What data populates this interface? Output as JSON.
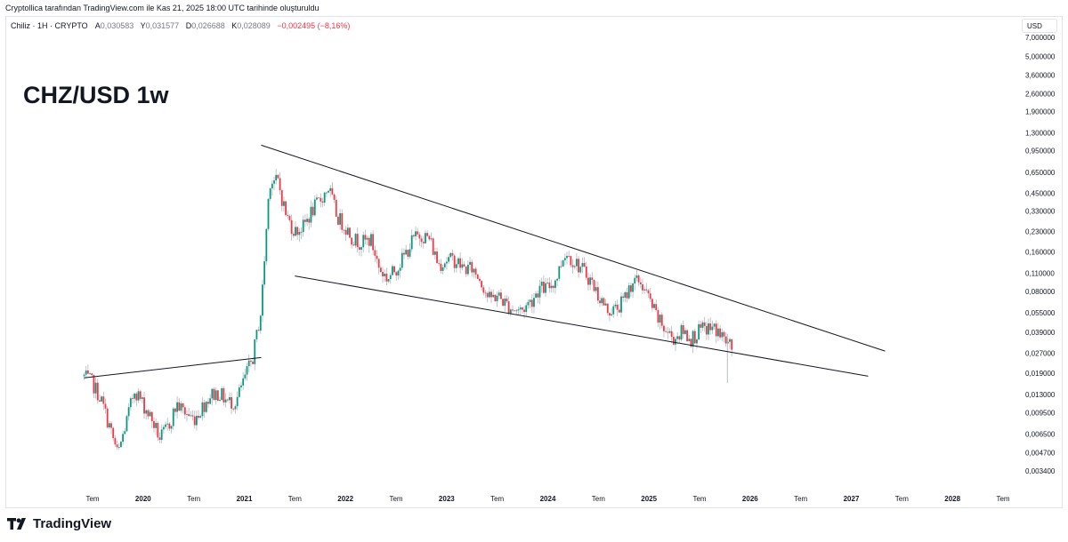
{
  "caption": "Cryptollica tarafından TradingView.com ile Kas 21, 2025 18:00 UTC tarihinde oluşturuldu",
  "legend": {
    "symbol": "Chiliz · 1H · CRYPTO",
    "open_label": "A",
    "open": "0,030583",
    "high_label": "Y",
    "high": "0,031577",
    "low_label": "D",
    "low": "0,026688",
    "close_label": "K",
    "close": "0,028089",
    "change": "−0,002495 (−8,16%)"
  },
  "currency": "USD",
  "brand": "TradingView",
  "colors": {
    "up": "#089981",
    "down": "#f23645",
    "wick": "#b2b5be",
    "trendline": "#131722"
  },
  "chart_data": {
    "type": "candlestick",
    "title": "CHZ/USD 1w",
    "y_scale": "log",
    "y_ticks": [
      "7,000000",
      "5,000000",
      "3,600000",
      "2,600000",
      "1,900000",
      "1,300000",
      "0,950000",
      "0,650000",
      "0,450000",
      "0,330000",
      "0,230000",
      "0,160000",
      "0,110000",
      "0,080000",
      "0,055000",
      "0,039000",
      "0,027000",
      "0,019000",
      "0,013000",
      "0,009500",
      "0,006500",
      "0,004700",
      "0,003400"
    ],
    "x_ticks": [
      "Tem",
      "2020",
      "Tem",
      "2021",
      "Tem",
      "2022",
      "Tem",
      "2023",
      "Tem",
      "2024",
      "Tem",
      "2025",
      "Tem",
      "2026",
      "Tem",
      "2027",
      "Tem",
      "2028",
      "Tem"
    ],
    "x_tick_dates": [
      "2019-07",
      "2020-01",
      "2020-07",
      "2021-01",
      "2021-07",
      "2022-01",
      "2022-07",
      "2023-01",
      "2023-07",
      "2024-01",
      "2024-07",
      "2025-01",
      "2025-07",
      "2026-01",
      "2026-07",
      "2027-01",
      "2027-07",
      "2028-01",
      "2028-07"
    ],
    "series_shape": [
      [
        "2019-06",
        0.018
      ],
      [
        "2019-07",
        0.016
      ],
      [
        "2019-08",
        0.012
      ],
      [
        "2019-09",
        0.0075
      ],
      [
        "2019-10",
        0.0045
      ],
      [
        "2019-11",
        0.008
      ],
      [
        "2019-12",
        0.0145
      ],
      [
        "2020-01",
        0.011
      ],
      [
        "2020-02",
        0.0085
      ],
      [
        "2020-03",
        0.006
      ],
      [
        "2020-04",
        0.0075
      ],
      [
        "2020-05",
        0.011
      ],
      [
        "2020-06",
        0.0095
      ],
      [
        "2020-07",
        0.0085
      ],
      [
        "2020-08",
        0.0105
      ],
      [
        "2020-09",
        0.013
      ],
      [
        "2020-10",
        0.0135
      ],
      [
        "2020-11",
        0.0115
      ],
      [
        "2020-12",
        0.0115
      ],
      [
        "2021-01",
        0.017
      ],
      [
        "2021-02",
        0.025
      ],
      [
        "2021-03",
        0.058
      ],
      [
        "2021-04",
        0.57
      ],
      [
        "2021-05",
        0.55
      ],
      [
        "2021-06",
        0.3
      ],
      [
        "2021-07",
        0.23
      ],
      [
        "2021-08",
        0.25
      ],
      [
        "2021-09",
        0.33
      ],
      [
        "2021-10",
        0.4
      ],
      [
        "2021-11",
        0.5
      ],
      [
        "2021-12",
        0.3
      ],
      [
        "2022-01",
        0.25
      ],
      [
        "2022-02",
        0.2
      ],
      [
        "2022-03",
        0.19
      ],
      [
        "2022-04",
        0.2
      ],
      [
        "2022-05",
        0.12
      ],
      [
        "2022-06",
        0.1
      ],
      [
        "2022-07",
        0.12
      ],
      [
        "2022-08",
        0.15
      ],
      [
        "2022-09",
        0.2
      ],
      [
        "2022-10",
        0.22
      ],
      [
        "2022-11",
        0.2
      ],
      [
        "2022-12",
        0.13
      ],
      [
        "2023-01",
        0.14
      ],
      [
        "2023-02",
        0.14
      ],
      [
        "2023-03",
        0.12
      ],
      [
        "2023-04",
        0.12
      ],
      [
        "2023-05",
        0.1
      ],
      [
        "2023-06",
        0.07
      ],
      [
        "2023-07",
        0.075
      ],
      [
        "2023-08",
        0.065
      ],
      [
        "2023-09",
        0.058
      ],
      [
        "2023-10",
        0.058
      ],
      [
        "2023-11",
        0.068
      ],
      [
        "2023-12",
        0.085
      ],
      [
        "2024-01",
        0.085
      ],
      [
        "2024-02",
        0.1
      ],
      [
        "2024-03",
        0.16
      ],
      [
        "2024-04",
        0.14
      ],
      [
        "2024-05",
        0.12
      ],
      [
        "2024-06",
        0.1
      ],
      [
        "2024-07",
        0.075
      ],
      [
        "2024-08",
        0.058
      ],
      [
        "2024-09",
        0.058
      ],
      [
        "2024-10",
        0.068
      ],
      [
        "2024-11",
        0.095
      ],
      [
        "2024-12",
        0.095
      ],
      [
        "2025-01",
        0.07
      ],
      [
        "2025-02",
        0.05
      ],
      [
        "2025-03",
        0.04
      ],
      [
        "2025-04",
        0.035
      ],
      [
        "2025-05",
        0.04
      ],
      [
        "2025-06",
        0.035
      ],
      [
        "2025-07",
        0.04
      ],
      [
        "2025-08",
        0.042
      ],
      [
        "2025-09",
        0.041
      ],
      [
        "2025-10",
        0.034
      ],
      [
        "2025-11",
        0.028
      ]
    ],
    "trendlines": [
      {
        "name": "",
        "from": [
          "2019-06",
          0.0175
        ],
        "to": [
          "2021-03",
          0.025
        ]
      },
      {
        "name": "",
        "from": [
          "2021-03",
          1.05
        ],
        "to": [
          "2027-05",
          0.028
        ]
      },
      {
        "name": "",
        "from": [
          "2021-07",
          0.105
        ],
        "to": [
          "2027-03",
          0.018
        ]
      }
    ]
  }
}
